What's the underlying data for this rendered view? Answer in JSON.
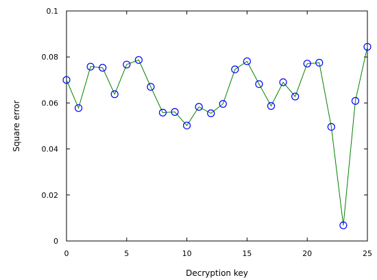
{
  "chart_data": {
    "type": "line",
    "title": "",
    "xlabel": "Decryption key",
    "ylabel": "Square error",
    "xlim": [
      0,
      25
    ],
    "ylim": [
      0,
      0.1
    ],
    "xticks": [
      0,
      5,
      10,
      15,
      20,
      25
    ],
    "xtick_labels": [
      "0",
      "5",
      "10",
      "15",
      "20",
      "25"
    ],
    "yticks": [
      0,
      0.02,
      0.04,
      0.06,
      0.08,
      0.1
    ],
    "ytick_labels": [
      "0",
      "0.02",
      "0.04",
      "0.06",
      "0.08",
      "0.1"
    ],
    "grid": false,
    "legend": false,
    "line_color": "#008000",
    "marker_color": "#0000ff",
    "marker": "circle",
    "x": [
      0,
      1,
      2,
      3,
      4,
      5,
      6,
      7,
      8,
      9,
      10,
      11,
      12,
      13,
      14,
      15,
      16,
      17,
      18,
      19,
      20,
      21,
      22,
      23,
      24,
      25
    ],
    "values": [
      0.07,
      0.0578,
      0.0758,
      0.0753,
      0.0638,
      0.0767,
      0.0787,
      0.067,
      0.0558,
      0.0561,
      0.0502,
      0.0583,
      0.0555,
      0.0596,
      0.0746,
      0.0781,
      0.0682,
      0.0587,
      0.069,
      0.0628,
      0.0771,
      0.0775,
      0.0496,
      0.0068,
      0.0609,
      0.0844
    ]
  }
}
